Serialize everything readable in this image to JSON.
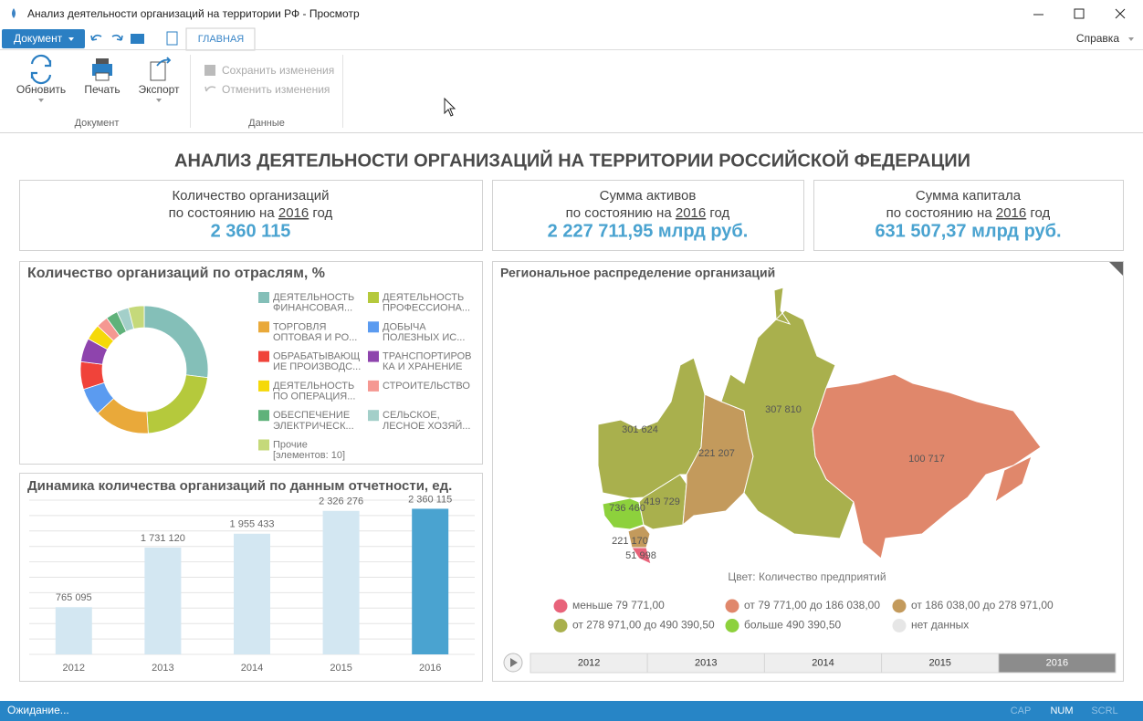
{
  "window": {
    "title": "Анализ деятельности организаций на территории РФ - Просмотр",
    "status": "Ожидание...",
    "indicators": [
      "CAP",
      "NUM",
      "SCRL"
    ]
  },
  "toolbar": {
    "document_menu": "Документ",
    "tab": "ГЛАВНАЯ",
    "help": "Справка"
  },
  "ribbon": {
    "groups": [
      {
        "label": "Документ",
        "buttons": [
          "Обновить",
          "Печать",
          "Экспорт"
        ]
      },
      {
        "label": "Данные",
        "buttons": [
          "Сохранить изменения",
          "Отменить изменения"
        ]
      }
    ]
  },
  "dashboard": {
    "title": "АНАЛИЗ ДЕЯТЕЛЬНОСТИ ОРГАНИЗАЦИЙ НА ТЕРРИТОРИИ РОССИЙСКОЙ ФЕДЕРАЦИИ",
    "cards": [
      {
        "label": "Количество организаций",
        "date_prefix": "по состоянию на",
        "year": "2016",
        "date_suffix": "год",
        "value": "2 360 115"
      },
      {
        "label": "Сумма активов",
        "date_prefix": "по состоянию на",
        "year": "2016",
        "date_suffix": "год",
        "value": "2 227 711,95 млрд руб."
      },
      {
        "label": "Сумма капитала",
        "date_prefix": "по состоянию на",
        "year": "2016",
        "date_suffix": "год",
        "value": "631 507,37 млрд руб."
      }
    ],
    "map": {
      "title": "Региональное распределение организаций",
      "values": [
        301624,
        736460,
        419729,
        221207,
        307810,
        100717,
        221170,
        51998
      ],
      "value_labels": [
        "301 624",
        "736 460",
        "419 729",
        "221 207",
        "307 810",
        "100 717",
        "221 170",
        "51 998"
      ],
      "colors": [
        "#a9b04d",
        "#8dd13c",
        "#a9b04d",
        "#c39a5c",
        "#a9b04d",
        "#e0876b",
        "#c39a5c",
        "#e8637a"
      ],
      "legend_title": "Цвет: Количество предприятий",
      "legend": [
        {
          "label": "меньше 79 771,00",
          "color": "#e8637a"
        },
        {
          "label": "от 79 771,00 до 186 038,00",
          "color": "#e0876b"
        },
        {
          "label": "от 186 038,00 до 278 971,00",
          "color": "#c39a5c"
        },
        {
          "label": "от 278 971,00 до 490 390,50",
          "color": "#a9b04d"
        },
        {
          "label": "больше 490 390,50",
          "color": "#8dd13c"
        },
        {
          "label": "нет данных",
          "color": "#e6e6e6"
        }
      ],
      "timeline": [
        {
          "label": "2012",
          "selected": false
        },
        {
          "label": "2013",
          "selected": false
        },
        {
          "label": "2014",
          "selected": false
        },
        {
          "label": "2015",
          "selected": false
        },
        {
          "label": "2016",
          "selected": true
        }
      ]
    }
  },
  "chart_data": [
    {
      "type": "donut",
      "title": "Количество организаций по отраслям, %",
      "categories": [
        "ДЕЯТЕЛЬНОСТЬ\nФИНАНСОВАЯ...",
        "ДЕЯТЕЛЬНОСТЬ\nПРОФЕССИОНА...",
        "ТОРГОВЛЯ\nОПТОВАЯ И РО...",
        "ДОБЫЧА\nПОЛЕЗНЫХ ИС...",
        "ОБРАБАТЫВАЮЩ\nИЕ ПРОИЗВОДС...",
        "ТРАНСПОРТИРОВ\nКА И ХРАНЕНИЕ",
        "ДЕЯТЕЛЬНОСТЬ\nПО ОПЕРАЦИЯ...",
        "СТРОИТЕЛЬСТВО",
        "ОБЕСПЕЧЕНИЕ\nЭЛЕКТРИЧЕСК...",
        "СЕЛЬСКОЕ,\nЛЕСНОЕ ХОЗЯЙ...",
        "Прочие\n[элементов: 10]"
      ],
      "values": [
        27,
        22,
        14,
        7,
        7,
        6,
        4,
        3,
        3,
        3,
        4
      ],
      "colors": [
        "#84bfb8",
        "#b5c93c",
        "#e9a93a",
        "#5b9bf0",
        "#f0433a",
        "#8e44ad",
        "#f5d90a",
        "#f59892",
        "#5fb27a",
        "#a3cfc9",
        "#c5d97a"
      ]
    },
    {
      "type": "bar",
      "title": "Динамика количества организаций по данным отчетности, ед.",
      "categories": [
        "2012",
        "2013",
        "2014",
        "2015",
        "2016"
      ],
      "values": [
        765095,
        1731120,
        1955433,
        2326276,
        2360115
      ],
      "value_labels": [
        "765 095",
        "1 731 120",
        "1 955 433",
        "2 326 276",
        "2 360 115"
      ],
      "colors": [
        "#d3e7f2",
        "#d3e7f2",
        "#d3e7f2",
        "#d3e7f2",
        "#4aa3d0"
      ],
      "ylim": [
        0,
        2500000
      ],
      "grid": true
    }
  ]
}
